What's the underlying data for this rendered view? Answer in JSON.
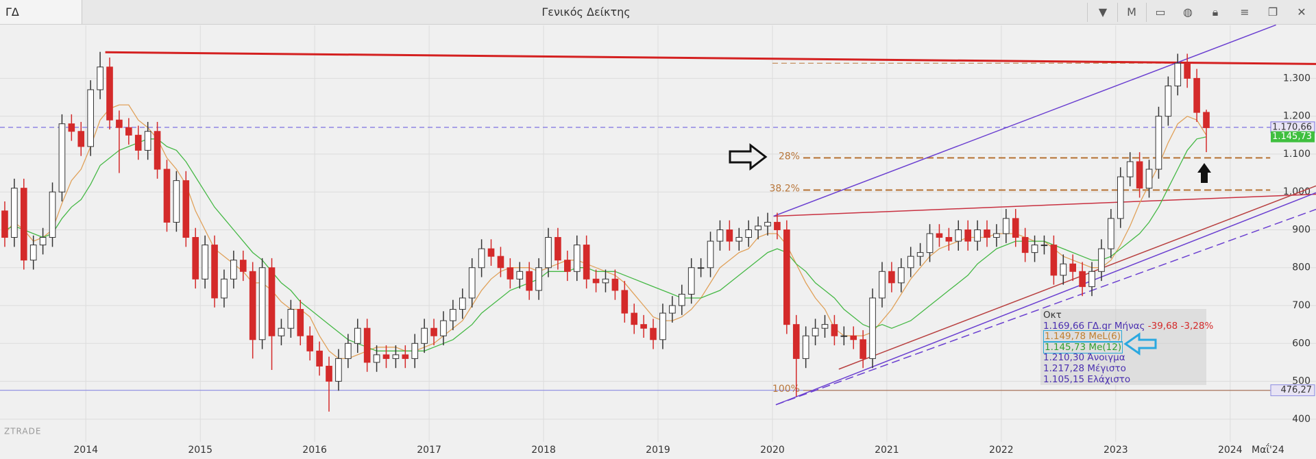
{
  "toolbar": {
    "symbol": "ΓΔ",
    "title": "Γενικός Δείκτης",
    "period": "M"
  },
  "watermark": "ZTRADE",
  "chart_data": {
    "type": "candlestick",
    "xlim": [
      2013.25,
      2024.75
    ],
    "xticks": [
      2014,
      2015,
      2016,
      2017,
      2018,
      2019,
      2020,
      2021,
      2022,
      2023,
      2024,
      {
        "value": 2024.33,
        "label": "Μαΐ'24"
      }
    ],
    "ylim": [
      340,
      1440
    ],
    "yticks": [
      {
        "value": 1300,
        "label": "1.300"
      },
      {
        "value": 1200,
        "label": "1.200"
      },
      {
        "value": 1100,
        "label": "1.100"
      },
      {
        "value": 1000,
        "label": "1.000"
      },
      900,
      800,
      700,
      600,
      500,
      400
    ],
    "grid": true,
    "up_color": "#ffffff",
    "down_color": "#d42a2a",
    "outline_color": "#333333",
    "open": [
      950,
      880,
      1010,
      820,
      860,
      880,
      1000,
      1180,
      1160,
      1120,
      1270,
      1330,
      1190,
      1170,
      1150,
      1110,
      1160,
      1060,
      920,
      1030,
      880,
      770,
      860,
      720,
      770,
      820,
      790,
      610,
      800,
      620,
      640,
      690,
      620,
      580,
      540,
      500,
      560,
      600,
      640,
      550,
      570,
      560,
      570,
      560,
      600,
      640,
      620,
      660,
      690,
      720,
      800,
      850,
      830,
      800,
      770,
      790,
      740,
      800,
      880,
      820,
      790,
      860,
      770,
      760,
      770,
      740,
      680,
      650,
      640,
      610,
      680,
      700,
      730,
      800,
      800,
      870,
      900,
      870,
      880,
      900,
      910,
      920,
      900,
      650,
      560,
      620,
      640,
      650,
      620,
      620,
      610,
      560,
      720,
      790,
      760,
      800,
      830,
      840,
      890,
      880,
      870,
      900,
      870,
      900,
      880,
      890,
      930,
      880,
      840,
      860,
      860,
      780,
      810,
      790,
      750,
      790,
      850,
      930,
      1040,
      1080,
      1010,
      1060,
      1200,
      1280,
      1340,
      1300,
      1210.3
    ],
    "high": [
      975,
      1035,
      1035,
      885,
      905,
      1025,
      1205,
      1205,
      1185,
      1295,
      1370,
      1355,
      1215,
      1195,
      1175,
      1185,
      1185,
      1085,
      1055,
      1055,
      905,
      885,
      885,
      795,
      845,
      845,
      815,
      825,
      825,
      665,
      715,
      715,
      645,
      605,
      565,
      585,
      625,
      665,
      665,
      595,
      595,
      595,
      595,
      625,
      665,
      665,
      685,
      715,
      745,
      825,
      875,
      875,
      855,
      825,
      815,
      815,
      825,
      905,
      905,
      845,
      885,
      885,
      795,
      795,
      795,
      765,
      705,
      675,
      665,
      705,
      725,
      755,
      825,
      825,
      895,
      925,
      925,
      905,
      925,
      935,
      945,
      945,
      925,
      675,
      645,
      665,
      675,
      675,
      645,
      645,
      635,
      745,
      815,
      815,
      825,
      855,
      865,
      915,
      915,
      905,
      925,
      925,
      925,
      925,
      915,
      955,
      955,
      905,
      885,
      885,
      885,
      835,
      835,
      815,
      815,
      875,
      955,
      1065,
      1105,
      1105,
      1085,
      1225,
      1305,
      1365,
      1365,
      1325,
      1217.28
    ],
    "low": [
      855,
      855,
      795,
      795,
      835,
      855,
      975,
      1135,
      1095,
      1095,
      1245,
      1165,
      1050,
      1125,
      1085,
      1085,
      1035,
      895,
      895,
      855,
      745,
      745,
      695,
      695,
      745,
      765,
      560,
      585,
      530,
      595,
      615,
      595,
      555,
      515,
      420,
      475,
      535,
      575,
      525,
      525,
      535,
      535,
      535,
      535,
      575,
      595,
      595,
      635,
      665,
      695,
      775,
      805,
      775,
      745,
      745,
      715,
      715,
      775,
      795,
      765,
      765,
      745,
      735,
      735,
      715,
      655,
      625,
      615,
      585,
      585,
      655,
      675,
      705,
      775,
      775,
      845,
      845,
      845,
      855,
      875,
      885,
      875,
      625,
      460,
      535,
      595,
      615,
      595,
      595,
      585,
      535,
      535,
      695,
      735,
      735,
      775,
      805,
      815,
      855,
      845,
      845,
      845,
      845,
      855,
      855,
      865,
      855,
      815,
      815,
      835,
      755,
      755,
      765,
      725,
      725,
      765,
      825,
      905,
      1015,
      985,
      985,
      1035,
      1175,
      1255,
      1275,
      1185,
      1105.15
    ],
    "close": [
      880,
      1010,
      820,
      860,
      880,
      1000,
      1180,
      1160,
      1120,
      1270,
      1330,
      1190,
      1170,
      1150,
      1110,
      1160,
      1060,
      920,
      1030,
      880,
      770,
      860,
      720,
      770,
      820,
      790,
      610,
      800,
      620,
      640,
      690,
      620,
      580,
      540,
      500,
      560,
      600,
      640,
      550,
      570,
      560,
      570,
      560,
      600,
      640,
      620,
      660,
      690,
      720,
      800,
      850,
      830,
      800,
      770,
      790,
      740,
      800,
      880,
      820,
      790,
      860,
      770,
      760,
      770,
      740,
      680,
      650,
      640,
      610,
      680,
      700,
      730,
      800,
      800,
      870,
      900,
      870,
      880,
      900,
      910,
      920,
      900,
      650,
      560,
      620,
      640,
      650,
      620,
      620,
      610,
      560,
      720,
      790,
      760,
      800,
      830,
      840,
      890,
      880,
      870,
      900,
      870,
      900,
      880,
      890,
      930,
      880,
      840,
      860,
      860,
      780,
      810,
      790,
      750,
      790,
      850,
      930,
      1040,
      1080,
      1010,
      1060,
      1200,
      1280,
      1340,
      1300,
      1210,
      1169.66
    ],
    "series": [
      {
        "name": "MeL(6)",
        "color": "#e0a15a",
        "values": [
          890,
          920,
          900,
          870,
          880,
          900,
          970,
          1030,
          1060,
          1120,
          1190,
          1220,
          1230,
          1230,
          1190,
          1170,
          1140,
          1090,
          1060,
          1020,
          950,
          900,
          850,
          830,
          810,
          790,
          760,
          760,
          740,
          710,
          690,
          690,
          670,
          620,
          580,
          560,
          560,
          570,
          580,
          590,
          590,
          590,
          580,
          580,
          590,
          600,
          620,
          640,
          660,
          700,
          740,
          770,
          790,
          800,
          800,
          800,
          790,
          800,
          810,
          820,
          820,
          810,
          800,
          790,
          780,
          760,
          730,
          700,
          670,
          660,
          660,
          670,
          690,
          720,
          760,
          800,
          820,
          840,
          850,
          880,
          890,
          890,
          860,
          810,
          760,
          720,
          690,
          640,
          620,
          620,
          620,
          630,
          660,
          690,
          730,
          770,
          800,
          830,
          850,
          860,
          870,
          880,
          880,
          880,
          890,
          890,
          890,
          880,
          870,
          870,
          850,
          830,
          820,
          810,
          800,
          800,
          820,
          860,
          910,
          970,
          1020,
          1070,
          1130,
          1180,
          1200,
          1190,
          1149.78
        ]
      },
      {
        "name": "Me(12)",
        "color": "#45b845",
        "values": [
          900,
          910,
          900,
          890,
          880,
          890,
          930,
          960,
          980,
          1020,
          1070,
          1090,
          1110,
          1120,
          1130,
          1140,
          1140,
          1120,
          1110,
          1080,
          1040,
          1000,
          960,
          930,
          900,
          870,
          840,
          820,
          790,
          760,
          740,
          710,
          690,
          670,
          650,
          630,
          610,
          600,
          590,
          580,
          580,
          580,
          580,
          580,
          580,
          590,
          600,
          610,
          630,
          650,
          680,
          700,
          720,
          740,
          750,
          760,
          770,
          790,
          790,
          790,
          800,
          800,
          790,
          790,
          790,
          780,
          770,
          760,
          750,
          740,
          730,
          720,
          720,
          720,
          730,
          740,
          760,
          780,
          800,
          820,
          840,
          850,
          840,
          810,
          790,
          760,
          740,
          720,
          690,
          670,
          650,
          640,
          650,
          640,
          650,
          660,
          680,
          700,
          720,
          740,
          760,
          780,
          810,
          830,
          850,
          860,
          870,
          870,
          870,
          870,
          860,
          850,
          840,
          830,
          820,
          820,
          830,
          850,
          870,
          890,
          920,
          960,
          1010,
          1060,
          1110,
          1140,
          1145.73
        ]
      }
    ],
    "price_lines": [
      {
        "value": 1170.66,
        "label": "1.170,66",
        "color": "#7b6fe0",
        "style": "dashed"
      },
      {
        "value": 1145.73,
        "label": "1.145,73",
        "color": "#3fbf3f",
        "style": "tag"
      },
      {
        "value": 476.27,
        "label": "476,27",
        "color": "#8a8ae0",
        "style": "solid"
      }
    ],
    "fib_x": [
      2020.0,
      2024.35
    ],
    "fib_color": "#b8763a",
    "fib_levels": [
      {
        "value": 1340
      },
      {
        "value": 1090,
        "label": "28%"
      },
      {
        "value": 1005,
        "label": "38.2%"
      },
      {
        "value": 476,
        "label": "100%"
      }
    ],
    "trendlines": [
      {
        "color": "#d42020",
        "width": 3,
        "dash": false,
        "points": [
          [
            2014.17,
            1369
          ],
          [
            2024.75,
            1338
          ]
        ]
      },
      {
        "color": "#c83040",
        "width": 1.5,
        "dash": false,
        "points": [
          [
            2020.01,
            936
          ],
          [
            2024.75,
            994
          ]
        ]
      },
      {
        "color": "#6a3fd0",
        "width": 1.5,
        "dash": false,
        "points": [
          [
            2020.01,
            936
          ],
          [
            2024.4,
            1441
          ]
        ]
      },
      {
        "color": "#6a3fd0",
        "width": 1.5,
        "dash": false,
        "points": [
          [
            2020.03,
            438
          ],
          [
            2024.75,
            998
          ]
        ]
      },
      {
        "color": "#6a3fd0",
        "width": 1.5,
        "dash": true,
        "points": [
          [
            2020.03,
            438
          ],
          [
            2024.75,
            954
          ]
        ]
      },
      {
        "color": "#b84040",
        "width": 1.5,
        "dash": false,
        "points": [
          [
            2020.58,
            532
          ],
          [
            2024.75,
            1016
          ]
        ]
      }
    ]
  },
  "info_panel": {
    "month": "Οκτ",
    "close_text": "1.169,66 ΓΔ.gr Μήνας",
    "change_text": "-39,68 -3,28%",
    "ma_values": [
      "1.149,78",
      "1.145,73"
    ],
    "rows": [
      "1.210,30 Άνοιγμα",
      "1.217,28 Μέγιστο",
      "1.105,15 Ελάχιστο"
    ]
  }
}
